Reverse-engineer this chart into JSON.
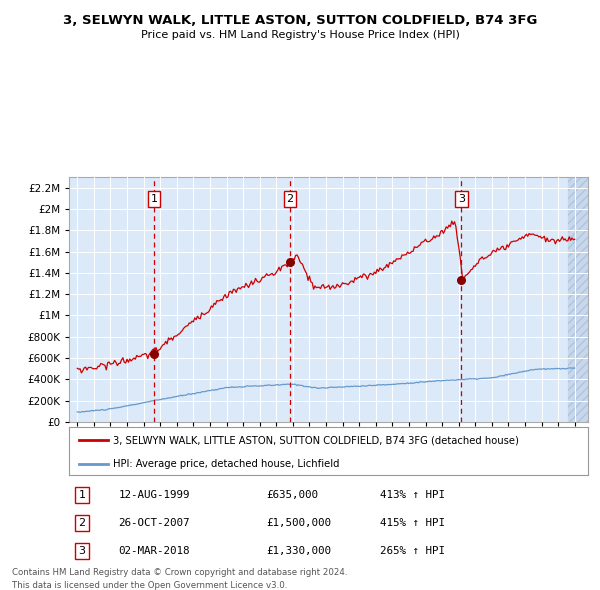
{
  "title": "3, SELWYN WALK, LITTLE ASTON, SUTTON COLDFIELD, B74 3FG",
  "subtitle": "Price paid vs. HM Land Registry's House Price Index (HPI)",
  "legend_line1": "3, SELWYN WALK, LITTLE ASTON, SUTTON COLDFIELD, B74 3FG (detached house)",
  "legend_line2": "HPI: Average price, detached house, Lichfield",
  "transactions": [
    {
      "num": 1,
      "date": "12-AUG-1999",
      "price": 635000,
      "pct": "413%",
      "dir": "↑",
      "year": 1999.62
    },
    {
      "num": 2,
      "date": "26-OCT-2007",
      "price": 1500000,
      "pct": "415%",
      "dir": "↑",
      "year": 2007.82
    },
    {
      "num": 3,
      "date": "02-MAR-2018",
      "price": 1330000,
      "pct": "265%",
      "dir": "↑",
      "year": 2018.17
    }
  ],
  "footnote1": "Contains HM Land Registry data © Crown copyright and database right 2024.",
  "footnote2": "This data is licensed under the Open Government Licence v3.0.",
  "bg_color": "#dce9f8",
  "hatch_color": "#c8d8ec",
  "red_line_color": "#cc0000",
  "blue_line_color": "#6699cc",
  "dot_color": "#880000",
  "vline_color": "#cc0000",
  "ylim_max": 2300000,
  "ylim_min": 0,
  "ytick_interval": 200000,
  "xstart": 1995,
  "xend": 2025
}
